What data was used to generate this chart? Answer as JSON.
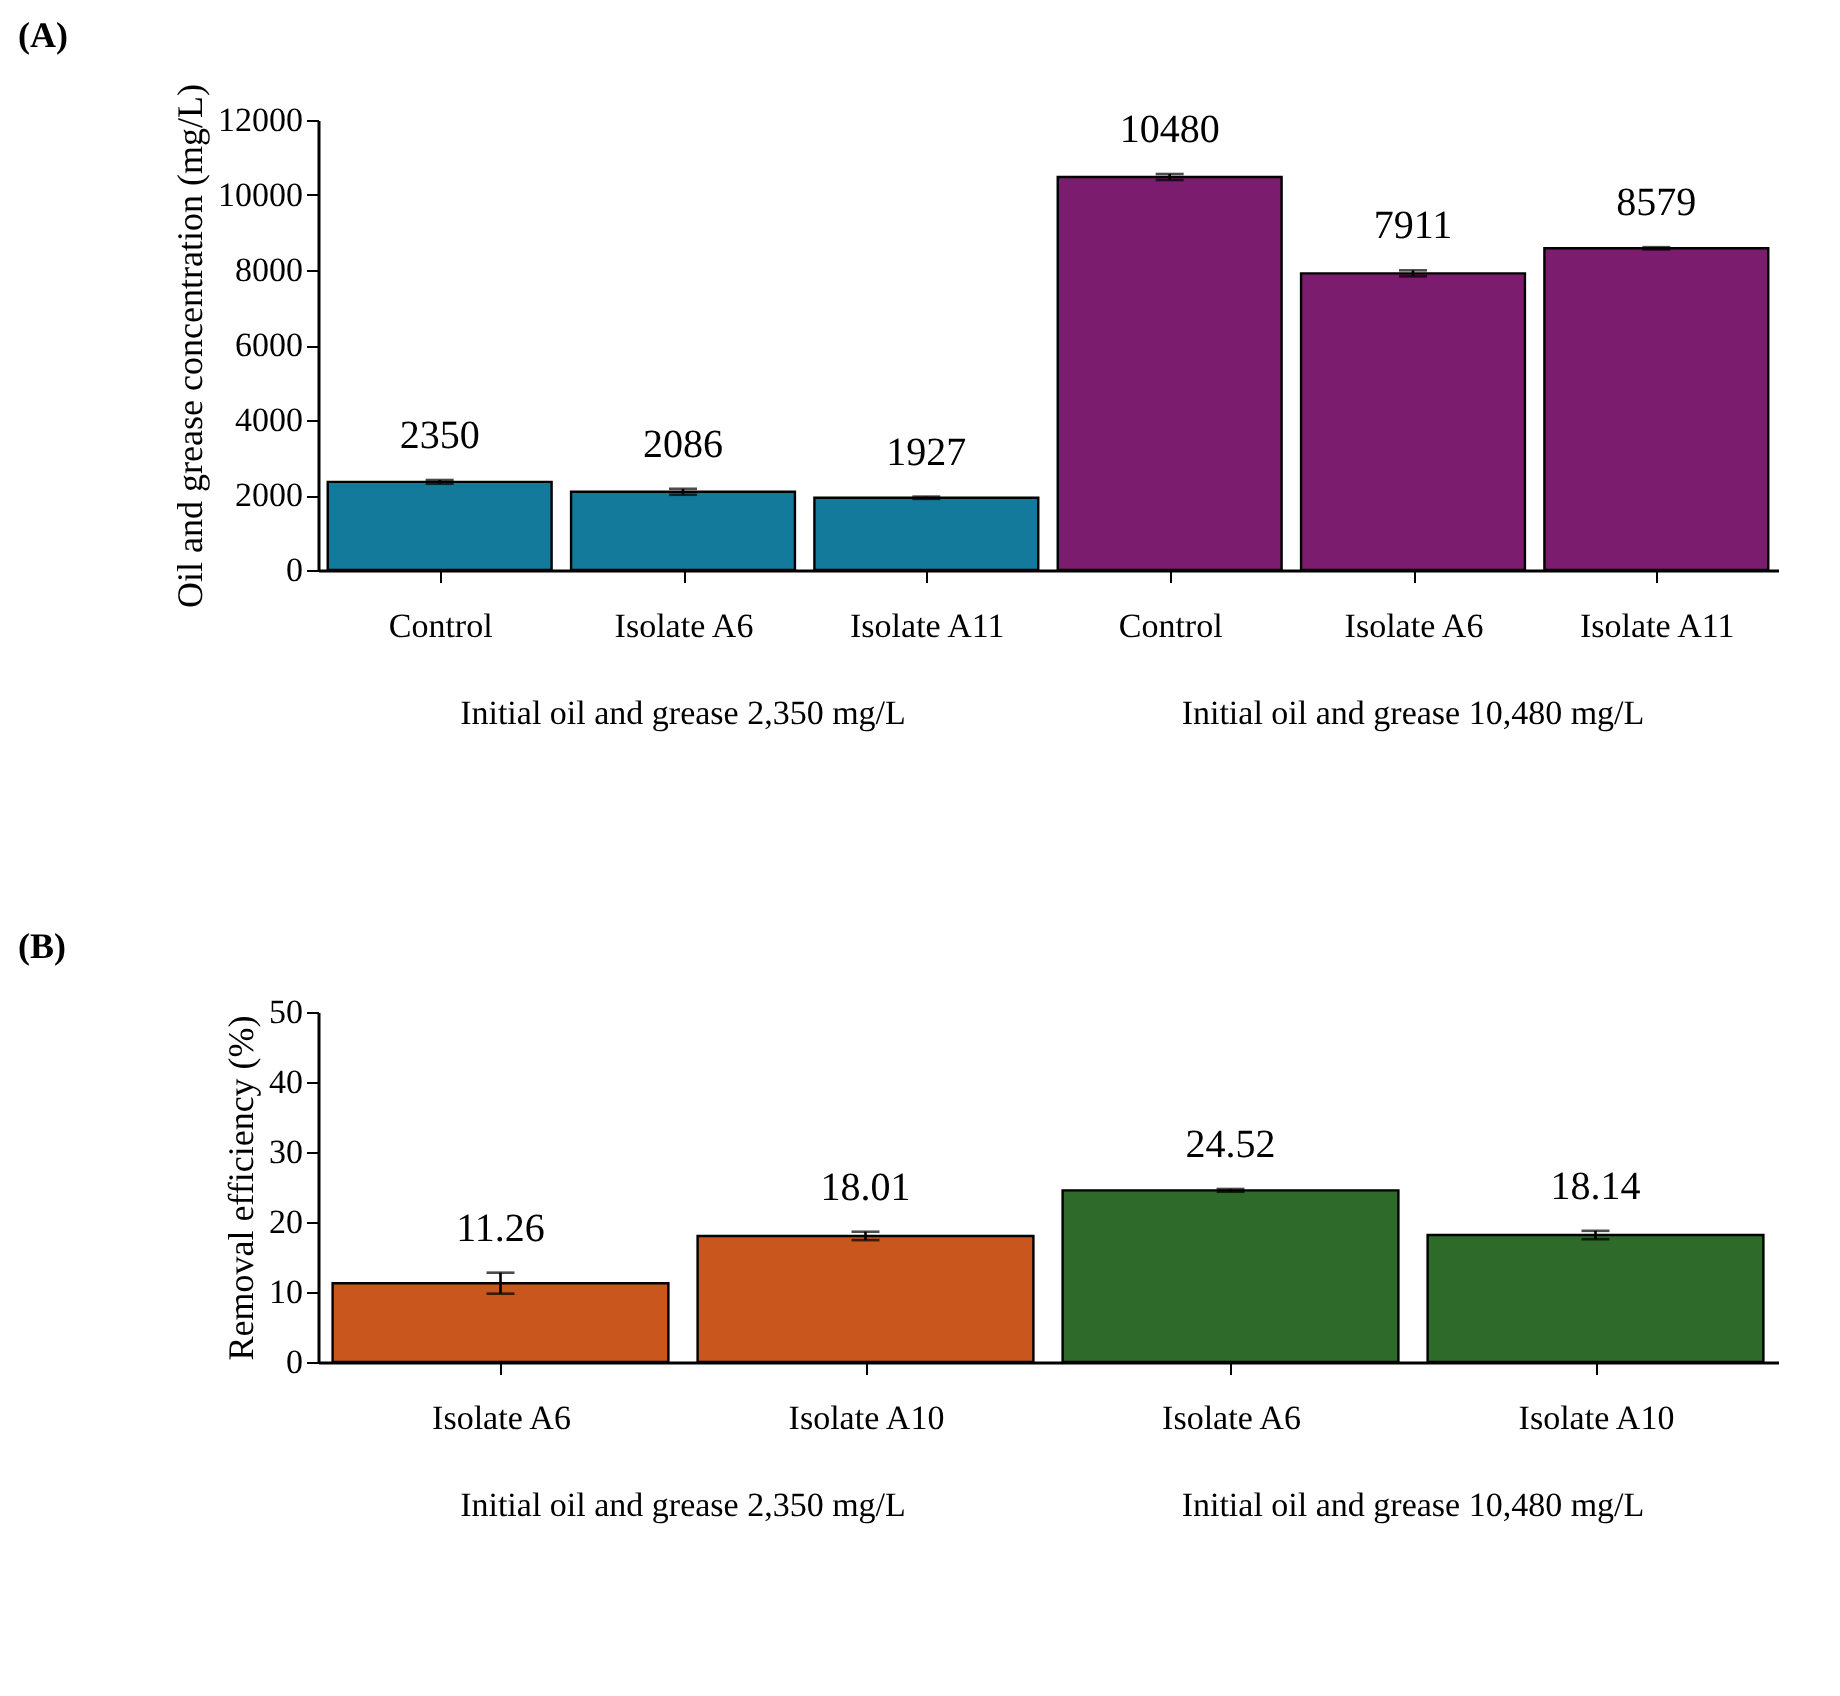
{
  "chart_data": [
    {
      "type": "bar",
      "title": "(A)",
      "ylabel": "Oil and grease concentration (mg/L)",
      "categories": [
        "Control",
        "Isolate A6",
        "Isolate A11",
        "Control",
        "Isolate A6",
        "Isolate A11"
      ],
      "values": [
        2350,
        2086,
        1927,
        10480,
        7911,
        8579
      ],
      "errors": [
        50,
        80,
        30,
        80,
        80,
        30
      ],
      "colors": [
        "#137a9c",
        "#137a9c",
        "#137a9c",
        "#7b1c6e",
        "#7b1c6e",
        "#7b1c6e"
      ],
      "ylim": [
        0,
        12000
      ],
      "yticks": [
        0,
        2000,
        4000,
        6000,
        8000,
        10000,
        12000
      ],
      "grid": false,
      "data_labels": true,
      "annotations": [
        "Initial oil and grease 2,350 mg/L",
        "Initial oil and grease 10,480 mg/L"
      ]
    },
    {
      "type": "bar",
      "title": "(B)",
      "ylabel": "Removal efficiency (%)",
      "categories": [
        "Isolate A6",
        "Isolate A10",
        "Isolate A6",
        "Isolate A10"
      ],
      "values": [
        11.26,
        18.01,
        24.52,
        18.14
      ],
      "errors": [
        1.5,
        0.6,
        0.2,
        0.6
      ],
      "colors": [
        "#c9561d",
        "#c9561d",
        "#2e6b2b",
        "#2e6b2b"
      ],
      "ylim": [
        0,
        50
      ],
      "yticks": [
        0,
        10,
        20,
        30,
        40,
        50
      ],
      "grid": false,
      "data_labels": true,
      "annotations": [
        "Initial oil and grease 2,350 mg/L",
        "Initial oil and grease 10,480 mg/L"
      ]
    }
  ]
}
